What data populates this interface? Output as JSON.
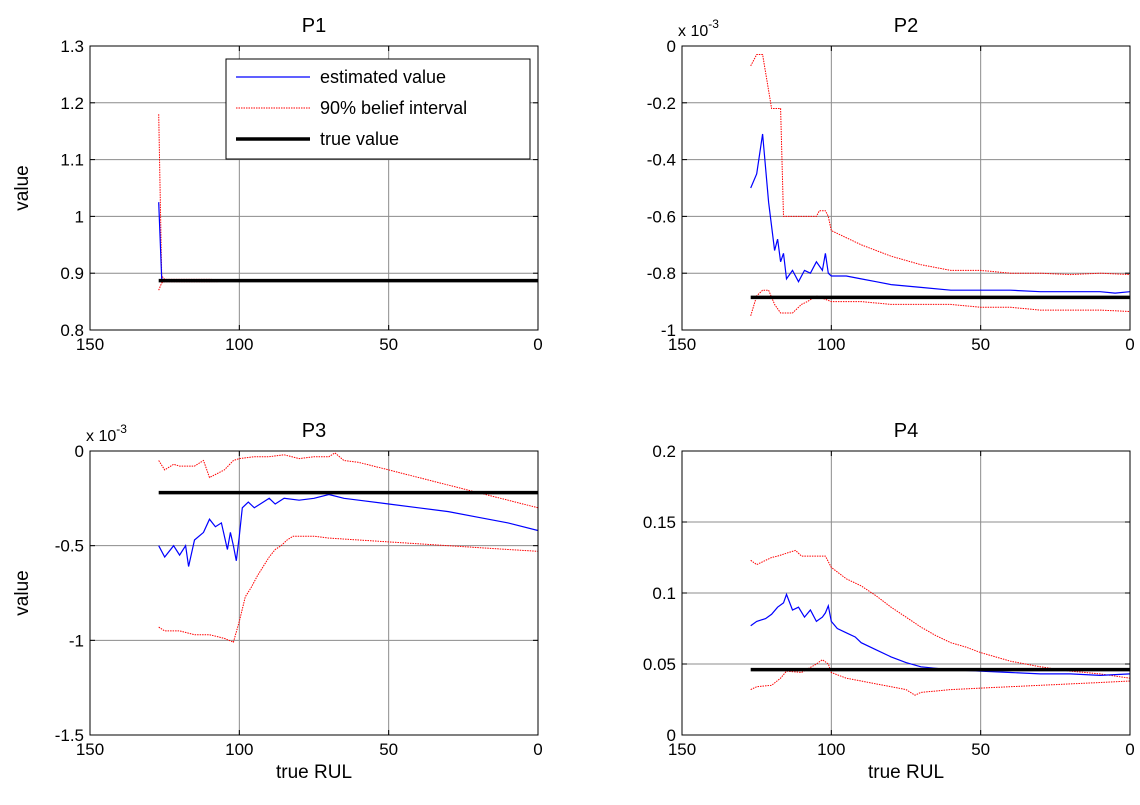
{
  "colors": {
    "estimate": "#0000ff",
    "bounds": "#ff0000",
    "truth": "#000000",
    "grid": "#8c8c8c"
  },
  "chart_data": [
    {
      "type": "line",
      "title": "P1",
      "xlabel": "",
      "ylabel": "value",
      "xlim": [
        150,
        0
      ],
      "ylim": [
        0.8,
        1.3
      ],
      "xticks": [
        150,
        100,
        50,
        0
      ],
      "yticks": [
        0.8,
        0.9,
        1,
        1.1,
        1.2,
        1.3
      ],
      "ytick_labels": [
        "0.8",
        "0.9",
        "1",
        "1.1",
        "1.2",
        "1.3"
      ],
      "exponent": "",
      "grid": true,
      "legend": {
        "placement": "top-right",
        "entries": [
          "estimated value",
          "90% belief interval",
          "true value"
        ]
      },
      "true_value": 0.887,
      "series": [
        {
          "name": "estimated value",
          "x": [
            127,
            126,
            125,
            120,
            110,
            100,
            80,
            50,
            20,
            0
          ],
          "y": [
            1.025,
            0.89,
            0.887,
            0.887,
            0.887,
            0.887,
            0.887,
            0.887,
            0.887,
            0.887
          ]
        },
        {
          "name": "90% belief interval",
          "x": [
            127,
            126,
            125,
            120,
            110,
            100,
            80,
            50,
            20,
            0
          ],
          "y": [
            1.18,
            0.895,
            0.889,
            0.889,
            0.889,
            0.888,
            0.888,
            0.888,
            0.888,
            0.888
          ]
        },
        {
          "x": [
            127,
            126,
            125,
            120,
            110,
            100,
            80,
            50,
            20,
            0
          ],
          "y": [
            0.87,
            0.883,
            0.885,
            0.885,
            0.885,
            0.886,
            0.886,
            0.886,
            0.886,
            0.886
          ]
        }
      ]
    },
    {
      "type": "line",
      "title": "P2",
      "xlabel": "",
      "ylabel": "",
      "xlim": [
        150,
        0
      ],
      "ylim": [
        -1,
        0
      ],
      "xticks": [
        150,
        100,
        50,
        0
      ],
      "yticks": [
        -1,
        -0.8,
        -0.6,
        -0.4,
        -0.2,
        0
      ],
      "ytick_labels": [
        "-1",
        "-0.8",
        "-0.6",
        "-0.4",
        "-0.2",
        "0"
      ],
      "exponent": "x 10",
      "exponent_power": "-3",
      "grid": true,
      "true_value": -0.885,
      "series": [
        {
          "name": "estimated value",
          "x": [
            127,
            125,
            123,
            121,
            119,
            118,
            117,
            116,
            115,
            113,
            111,
            109,
            107,
            105,
            103,
            102,
            101,
            100,
            95,
            90,
            85,
            80,
            70,
            60,
            50,
            40,
            30,
            20,
            10,
            5,
            0
          ],
          "y": [
            -0.5,
            -0.45,
            -0.31,
            -0.55,
            -0.72,
            -0.68,
            -0.76,
            -0.73,
            -0.82,
            -0.79,
            -0.83,
            -0.79,
            -0.8,
            -0.76,
            -0.79,
            -0.73,
            -0.8,
            -0.81,
            -0.81,
            -0.82,
            -0.83,
            -0.84,
            -0.85,
            -0.86,
            -0.86,
            -0.86,
            -0.865,
            -0.865,
            -0.865,
            -0.87,
            -0.865
          ]
        },
        {
          "name": "90% belief interval",
          "x": [
            127,
            126,
            125,
            124,
            123,
            120,
            119,
            117,
            116,
            115,
            110,
            105,
            104,
            102,
            101,
            100,
            90,
            80,
            70,
            60,
            50,
            40,
            30,
            20,
            10,
            0
          ],
          "y": [
            -0.07,
            -0.05,
            -0.03,
            -0.03,
            -0.03,
            -0.22,
            -0.22,
            -0.22,
            -0.6,
            -0.6,
            -0.6,
            -0.6,
            -0.58,
            -0.58,
            -0.6,
            -0.65,
            -0.7,
            -0.74,
            -0.77,
            -0.79,
            -0.79,
            -0.8,
            -0.8,
            -0.805,
            -0.8,
            -0.805
          ]
        },
        {
          "x": [
            127,
            125,
            123,
            121,
            119,
            117,
            115,
            113,
            110,
            108,
            105,
            100,
            90,
            80,
            70,
            60,
            50,
            40,
            30,
            20,
            10,
            0
          ],
          "y": [
            -0.95,
            -0.88,
            -0.86,
            -0.86,
            -0.91,
            -0.94,
            -0.94,
            -0.94,
            -0.91,
            -0.9,
            -0.88,
            -0.9,
            -0.9,
            -0.91,
            -0.91,
            -0.91,
            -0.92,
            -0.92,
            -0.93,
            -0.93,
            -0.93,
            -0.935
          ]
        }
      ]
    },
    {
      "type": "line",
      "title": "P3",
      "xlabel": "true RUL",
      "ylabel": "value",
      "xlim": [
        150,
        0
      ],
      "ylim": [
        -1.5,
        0
      ],
      "xticks": [
        150,
        100,
        50,
        0
      ],
      "yticks": [
        -1.5,
        -1,
        -0.5,
        0
      ],
      "ytick_labels": [
        "-1.5",
        "-1",
        "-0.5",
        "0"
      ],
      "exponent": "x 10",
      "exponent_power": "-3",
      "grid": true,
      "true_value": -0.22,
      "series": [
        {
          "name": "estimated value",
          "x": [
            127,
            125,
            122,
            120,
            118,
            117,
            115,
            112,
            110,
            108,
            106,
            104,
            103,
            102,
            101,
            100,
            99,
            97,
            95,
            92,
            90,
            88,
            85,
            80,
            75,
            70,
            65,
            60,
            50,
            40,
            30,
            20,
            10,
            0
          ],
          "y": [
            -0.5,
            -0.56,
            -0.5,
            -0.55,
            -0.5,
            -0.61,
            -0.47,
            -0.43,
            -0.36,
            -0.4,
            -0.38,
            -0.52,
            -0.43,
            -0.5,
            -0.58,
            -0.45,
            -0.3,
            -0.27,
            -0.3,
            -0.27,
            -0.25,
            -0.28,
            -0.25,
            -0.26,
            -0.25,
            -0.23,
            -0.25,
            -0.26,
            -0.28,
            -0.3,
            -0.32,
            -0.35,
            -0.38,
            -0.42
          ]
        },
        {
          "name": "90% belief interval",
          "x": [
            127,
            125,
            122,
            120,
            115,
            112,
            110,
            105,
            102,
            100,
            95,
            90,
            85,
            80,
            75,
            70,
            68,
            65,
            60,
            50,
            40,
            30,
            20,
            10,
            0
          ],
          "y": [
            -0.05,
            -0.1,
            -0.07,
            -0.08,
            -0.08,
            -0.05,
            -0.14,
            -0.1,
            -0.05,
            -0.04,
            -0.03,
            -0.03,
            -0.02,
            -0.04,
            -0.03,
            -0.03,
            -0.01,
            -0.05,
            -0.06,
            -0.1,
            -0.14,
            -0.18,
            -0.22,
            -0.26,
            -0.3
          ]
        },
        {
          "x": [
            127,
            125,
            120,
            115,
            110,
            105,
            102,
            100,
            98,
            96,
            94,
            92,
            90,
            88,
            86,
            84,
            82,
            80,
            75,
            70,
            60,
            50,
            40,
            30,
            20,
            10,
            0
          ],
          "y": [
            -0.93,
            -0.95,
            -0.95,
            -0.97,
            -0.97,
            -0.99,
            -1.01,
            -0.9,
            -0.77,
            -0.72,
            -0.66,
            -0.61,
            -0.56,
            -0.52,
            -0.5,
            -0.47,
            -0.45,
            -0.45,
            -0.45,
            -0.46,
            -0.47,
            -0.48,
            -0.49,
            -0.5,
            -0.51,
            -0.52,
            -0.53
          ]
        }
      ]
    },
    {
      "type": "line",
      "title": "P4",
      "xlabel": "true RUL",
      "ylabel": "",
      "xlim": [
        150,
        0
      ],
      "ylim": [
        0,
        0.2
      ],
      "xticks": [
        150,
        100,
        50,
        0
      ],
      "yticks": [
        0,
        0.05,
        0.1,
        0.15,
        0.2
      ],
      "ytick_labels": [
        "0",
        "0.05",
        "0.1",
        "0.15",
        "0.2"
      ],
      "exponent": "",
      "grid": true,
      "true_value": 0.046,
      "series": [
        {
          "name": "estimated value",
          "x": [
            127,
            125,
            122,
            120,
            118,
            116,
            115,
            113,
            111,
            109,
            107,
            105,
            103,
            102,
            101,
            100,
            98,
            95,
            92,
            90,
            85,
            80,
            75,
            70,
            65,
            60,
            50,
            40,
            30,
            20,
            10,
            0
          ],
          "y": [
            0.077,
            0.08,
            0.082,
            0.085,
            0.09,
            0.093,
            0.099,
            0.088,
            0.09,
            0.083,
            0.088,
            0.08,
            0.083,
            0.086,
            0.091,
            0.08,
            0.075,
            0.072,
            0.069,
            0.065,
            0.06,
            0.055,
            0.051,
            0.048,
            0.047,
            0.046,
            0.045,
            0.044,
            0.043,
            0.043,
            0.042,
            0.043
          ]
        },
        {
          "name": "90% belief interval",
          "x": [
            127,
            125,
            120,
            118,
            115,
            112,
            110,
            108,
            105,
            102,
            100,
            95,
            90,
            85,
            80,
            75,
            70,
            65,
            60,
            55,
            50,
            40,
            30,
            20,
            10,
            0
          ],
          "y": [
            0.123,
            0.12,
            0.125,
            0.126,
            0.128,
            0.13,
            0.126,
            0.126,
            0.126,
            0.126,
            0.118,
            0.11,
            0.105,
            0.098,
            0.09,
            0.083,
            0.076,
            0.07,
            0.065,
            0.062,
            0.058,
            0.052,
            0.048,
            0.045,
            0.043,
            0.04
          ]
        },
        {
          "x": [
            127,
            125,
            120,
            117,
            115,
            110,
            105,
            103,
            101,
            100,
            95,
            90,
            85,
            80,
            75,
            72,
            70,
            65,
            60,
            50,
            40,
            30,
            20,
            10,
            0
          ],
          "y": [
            0.032,
            0.034,
            0.035,
            0.04,
            0.045,
            0.044,
            0.05,
            0.053,
            0.05,
            0.044,
            0.04,
            0.038,
            0.036,
            0.034,
            0.032,
            0.028,
            0.03,
            0.031,
            0.032,
            0.033,
            0.034,
            0.035,
            0.036,
            0.037,
            0.038
          ]
        }
      ]
    }
  ]
}
